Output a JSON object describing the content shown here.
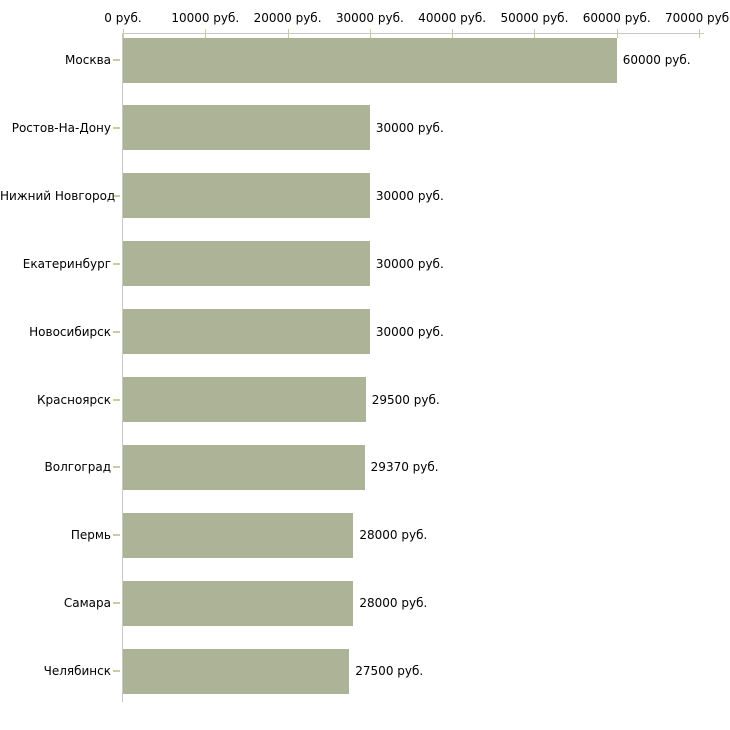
{
  "chart_data": {
    "type": "bar",
    "orientation": "horizontal",
    "title": "",
    "xlabel": "",
    "ylabel": "",
    "unit": "руб.",
    "categories": [
      "Москва",
      "Ростов-На-Дону",
      "Нижний Новгород",
      "Екатеринбург",
      "Новосибирск",
      "Красноярск",
      "Волгоград",
      "Пермь",
      "Самара",
      "Челябинск"
    ],
    "values": [
      60000,
      30000,
      30000,
      30000,
      30000,
      29500,
      29370,
      28000,
      28000,
      27500
    ],
    "value_labels": [
      "60000 руб.",
      "30000 руб.",
      "30000 руб.",
      "30000 руб.",
      "30000 руб.",
      "29500 руб.",
      "29370 руб.",
      "28000 руб.",
      "28000 руб.",
      "27500 руб."
    ],
    "x_axis": {
      "position": "top",
      "xlim": [
        0,
        70000
      ],
      "ticks": [
        0,
        10000,
        20000,
        30000,
        40000,
        50000,
        60000,
        70000
      ],
      "tick_labels": [
        "0 руб.",
        "10000 руб.",
        "20000 руб.",
        "30000 руб.",
        "40000 руб.",
        "50000 руб.",
        "60000 руб.",
        "70000 руб."
      ]
    },
    "grid": false,
    "legend": null,
    "colors": {
      "bar": "#adb396",
      "tick": "#c9cd9e",
      "axis_line": "#c8c8c8",
      "text": "#000000",
      "background": "#ffffff"
    }
  }
}
